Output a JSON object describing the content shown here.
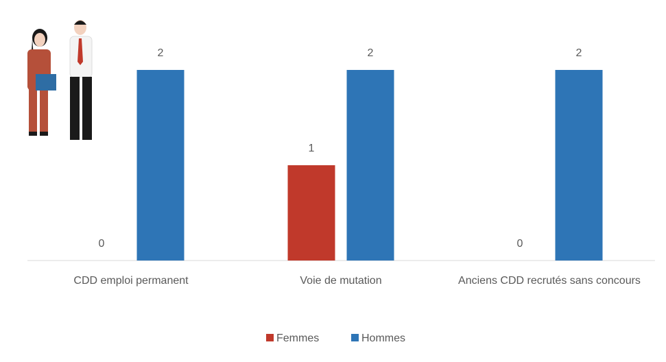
{
  "chart_data": {
    "type": "bar",
    "categories": [
      "CDD emploi permanent",
      "Voie de mutation",
      "Anciens CDD recrutés sans concours"
    ],
    "series": [
      {
        "name": "Femmes",
        "color": "#c0392b",
        "values": [
          0,
          1,
          0
        ]
      },
      {
        "name": "Hommes",
        "color": "#2e75b6",
        "values": [
          2,
          2,
          2
        ]
      }
    ],
    "legend": "bottom"
  }
}
